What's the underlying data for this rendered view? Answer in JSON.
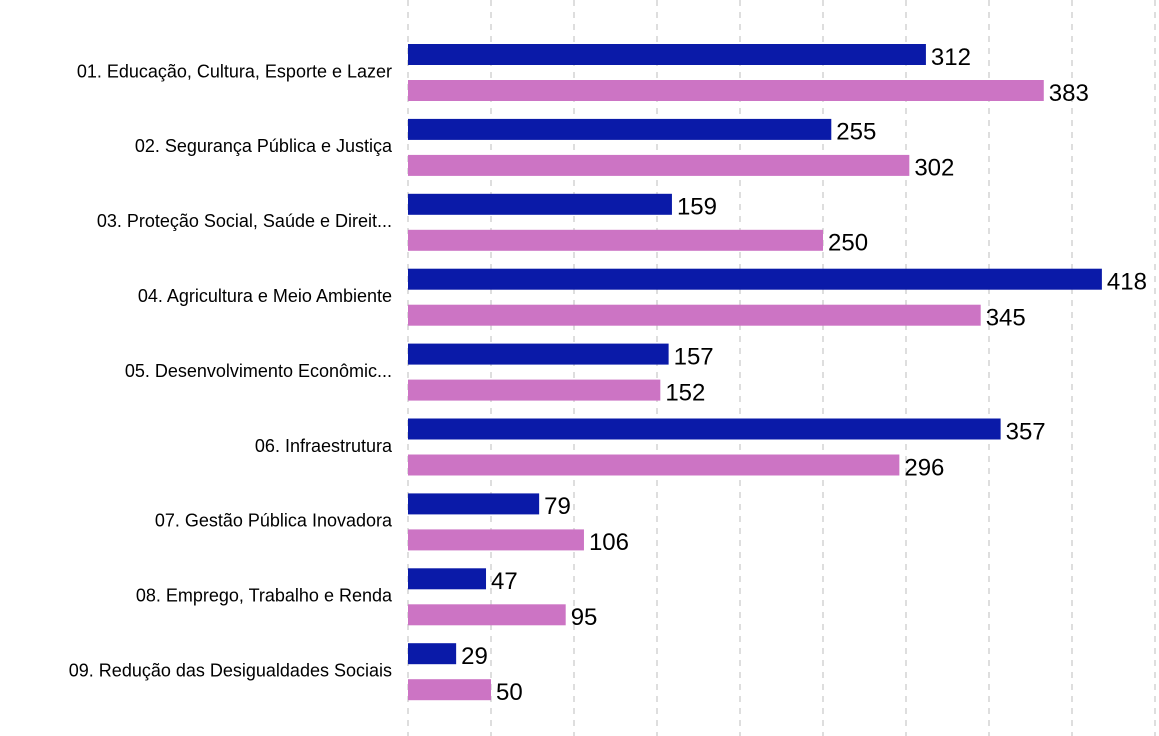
{
  "chart_data": {
    "type": "barh",
    "categories": [
      "01. Educação, Cultura, Esporte e Lazer",
      "02. Segurança Pública e Justiça",
      "03. Proteção Social, Saúde e Direit...",
      "04. Agricultura e Meio Ambiente",
      "05. Desenvolvimento Econômic...",
      "06. Infraestrutura",
      "07. Gestão Pública Inovadora",
      "08. Emprego, Trabalho e Renda",
      "09. Redução das Desigualdades Sociais"
    ],
    "series": [
      {
        "color": "#0a1aa8",
        "values": [
          312,
          255,
          159,
          418,
          157,
          357,
          79,
          47,
          29
        ]
      },
      {
        "color": "#cc74c4",
        "values": [
          383,
          302,
          250,
          345,
          152,
          296,
          106,
          95,
          50
        ]
      }
    ],
    "xlim": [
      0,
      450
    ],
    "xticks": [
      0,
      50,
      100,
      150,
      200,
      250,
      300,
      350,
      400,
      450
    ],
    "grid": true
  }
}
